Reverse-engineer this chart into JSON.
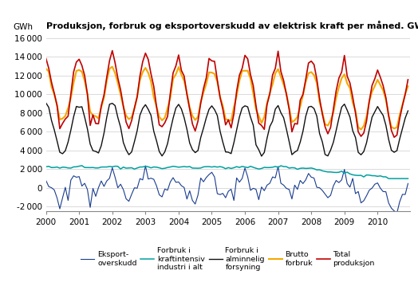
{
  "title": "Produksjon, forbruk og eksportoverskudd av elektrisk kraft per måned. GWh",
  "ylabel": "GWh",
  "ylim": [
    -2500,
    16500
  ],
  "yticks": [
    -2000,
    0,
    2000,
    4000,
    6000,
    8000,
    10000,
    12000,
    14000,
    16000
  ],
  "colors": {
    "eksport": "#1a3d8f",
    "kraftintensiv": "#00a0a0",
    "alminnelig": "#111111",
    "brutto": "#f5a800",
    "total": "#c00000"
  },
  "legend_labels": [
    "Eksport-\noverskudd",
    "Forbruk i\nkraftintensiv\nindustri i alt",
    "Forbruk i\nalminnelig\nforsyning",
    "Brutto\nforbruk",
    "Total\nproduksjon"
  ]
}
